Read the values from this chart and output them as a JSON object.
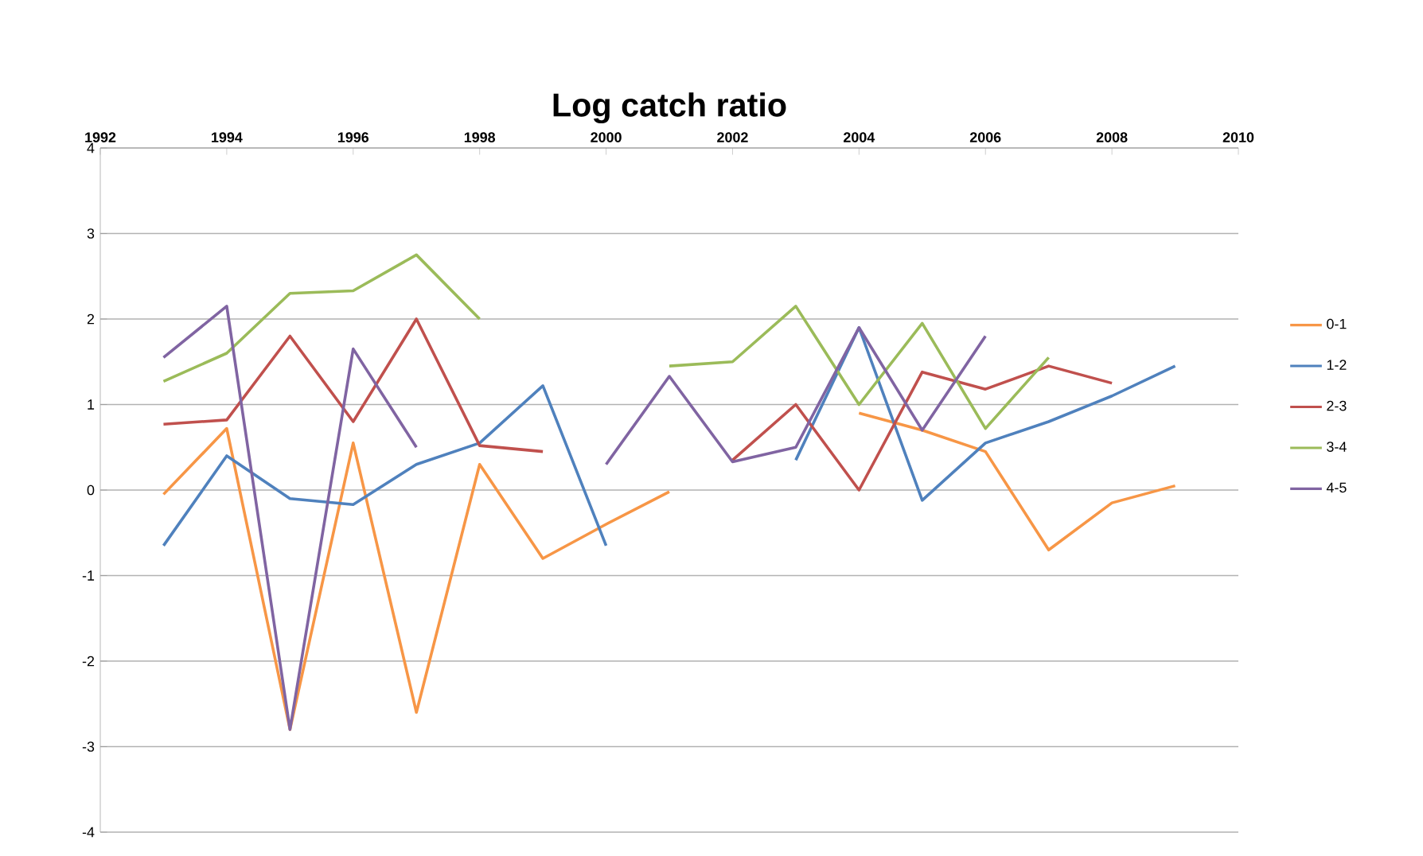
{
  "chart_data": {
    "type": "line",
    "title": "Log catch ratio",
    "x": [
      1993,
      1994,
      1995,
      1996,
      1997,
      1998,
      1999,
      2000,
      2001,
      2002,
      2003,
      2004,
      2005,
      2006,
      2007,
      2008,
      2009
    ],
    "series": [
      {
        "name": "0-1",
        "color": "#f79646",
        "values": [
          -0.05,
          0.72,
          -2.8,
          0.55,
          -2.6,
          0.3,
          -0.8,
          -0.4,
          -0.02,
          null,
          null,
          0.9,
          0.7,
          0.45,
          -0.7,
          -0.15,
          0.05
        ]
      },
      {
        "name": "1-2",
        "color": "#4f81bd",
        "values": [
          -0.65,
          0.4,
          -0.1,
          -0.17,
          0.3,
          0.55,
          1.22,
          -0.65,
          null,
          null,
          0.35,
          1.9,
          -0.12,
          0.55,
          0.8,
          1.1,
          1.45
        ]
      },
      {
        "name": "2-3",
        "color": "#c0504d",
        "values": [
          0.77,
          0.82,
          1.8,
          0.8,
          2.0,
          0.52,
          0.45,
          null,
          null,
          0.35,
          1.0,
          0.0,
          1.38,
          1.18,
          1.45,
          1.25,
          null
        ]
      },
      {
        "name": "3-4",
        "color": "#9bbb59",
        "values": [
          1.27,
          1.6,
          2.3,
          2.33,
          2.75,
          2.0,
          null,
          null,
          1.45,
          1.5,
          2.15,
          1.0,
          1.95,
          0.72,
          1.55,
          null,
          null
        ]
      },
      {
        "name": "4-5",
        "color": "#8064a2",
        "values": [
          1.55,
          2.15,
          -2.8,
          1.65,
          0.5,
          null,
          null,
          0.3,
          1.33,
          0.33,
          0.5,
          1.9,
          0.7,
          1.8,
          null,
          null,
          null
        ]
      }
    ],
    "xlim": [
      1992,
      2010
    ],
    "xticks": [
      1992,
      1994,
      1996,
      1998,
      2000,
      2002,
      2004,
      2006,
      2008,
      2010
    ],
    "ylim": [
      -4,
      4
    ],
    "yticks": [
      -4,
      -3,
      -2,
      -1,
      0,
      1,
      2,
      3,
      4
    ],
    "grid": "y",
    "legend": "right",
    "marker": "none",
    "line_style": "solid"
  }
}
